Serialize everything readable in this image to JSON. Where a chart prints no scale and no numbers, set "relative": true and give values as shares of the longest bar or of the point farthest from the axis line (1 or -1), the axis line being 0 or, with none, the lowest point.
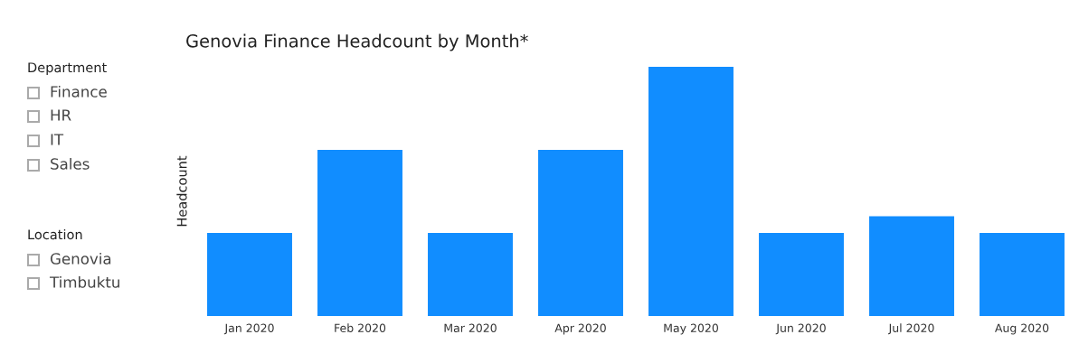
{
  "chart_data": {
    "type": "bar",
    "title": "Genovia Finance Headcount by Month*",
    "ylabel": "Headcount",
    "categories": [
      "Jan 2020",
      "Feb 2020",
      "Mar 2020",
      "Apr 2020",
      "May 2020",
      "Jun 2020",
      "Jul 2020",
      "Aug 2020"
    ],
    "values": [
      0.333,
      0.667,
      0.333,
      0.667,
      1,
      0.333,
      0.4,
      0.333
    ],
    "color": "#118dff",
    "relative": true,
    "grid": false,
    "annotations": [
      "Department",
      "Finance",
      "HR",
      "IT",
      "Sales",
      "Location",
      "Genovia",
      "Timbuktu"
    ]
  }
}
